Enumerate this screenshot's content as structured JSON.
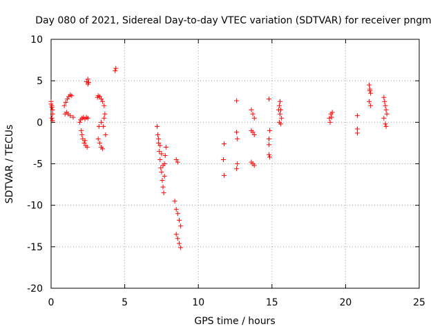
{
  "chart_data": {
    "type": "scatter",
    "title": "Day 080 of 2021, Sidereal Day-to-day VTEC variation (SDTVAR) for receiver pngm",
    "xlabel": "GPS time / hours",
    "ylabel": "SDTVAR / TECUs",
    "xlim": [
      0,
      25
    ],
    "ylim": [
      -20,
      10
    ],
    "x_ticks": [
      0,
      5,
      10,
      15,
      20,
      25
    ],
    "x_tick_labels": [
      "0",
      "5",
      "10",
      "15",
      "20",
      "25"
    ],
    "y_ticks": [
      10,
      5,
      0,
      -5,
      -10,
      -15,
      -20
    ],
    "y_tick_labels": [
      "10",
      "5",
      "0",
      "-5",
      "-10",
      "-15",
      "-20"
    ],
    "grid": true,
    "marker": "+",
    "color": "#ff0000",
    "series": [
      {
        "name": "SDTVAR",
        "x": [
          0.0,
          0.05,
          0.1,
          0.1,
          0.05,
          0.1,
          0.0,
          0.05,
          0.9,
          1.0,
          1.1,
          1.2,
          1.3,
          1.4,
          0.95,
          1.05,
          1.15,
          1.3,
          1.5,
          1.95,
          2.0,
          2.1,
          2.2,
          2.3,
          2.4,
          2.5,
          2.05,
          2.15,
          2.25,
          2.35,
          2.45,
          2.1,
          2.3,
          2.5,
          2.4,
          2.5,
          2.55,
          3.15,
          3.2,
          3.3,
          3.4,
          3.5,
          3.6,
          3.7,
          3.2,
          3.3,
          3.4,
          3.5,
          3.6,
          3.65,
          3.25,
          3.4,
          3.55,
          4.35,
          4.4,
          7.2,
          7.25,
          7.3,
          7.35,
          7.4,
          7.45,
          7.5,
          7.55,
          7.6,
          7.65,
          7.7,
          7.75,
          7.8,
          7.3,
          7.4,
          7.5,
          7.6,
          7.7,
          8.4,
          8.5,
          8.6,
          8.7,
          8.8,
          8.5,
          8.6,
          8.7,
          8.8,
          8.5,
          8.6,
          11.75,
          11.7,
          11.75,
          12.6,
          12.6,
          12.65,
          12.65,
          12.6,
          13.6,
          13.7,
          13.8,
          13.6,
          13.7,
          13.8,
          13.6,
          13.7,
          13.8,
          14.8,
          14.85,
          14.8,
          14.8,
          14.8,
          14.85,
          15.45,
          15.5,
          15.55,
          15.6,
          15.65,
          15.5,
          15.6,
          15.55,
          18.9,
          19.0,
          19.1,
          18.95,
          19.05,
          20.8,
          20.8,
          20.8,
          21.6,
          21.65,
          21.7,
          21.6,
          21.7,
          21.65,
          22.6,
          22.65,
          22.7,
          22.75,
          22.8,
          22.6,
          22.7,
          22.75
        ],
        "y": [
          2.5,
          2.0,
          1.5,
          1.0,
          0.5,
          0.2,
          2.2,
          1.8,
          2.0,
          2.4,
          2.8,
          3.1,
          3.3,
          3.2,
          1.0,
          1.2,
          1.0,
          0.8,
          0.6,
          0.0,
          0.3,
          0.5,
          0.6,
          0.4,
          0.6,
          0.5,
          -1.0,
          -2.0,
          -2.5,
          -2.8,
          -3.0,
          -1.5,
          -2.2,
          4.6,
          4.9,
          5.2,
          4.8,
          3.0,
          3.2,
          3.1,
          2.8,
          2.5,
          2.0,
          -1.5,
          -2.0,
          -2.5,
          -3.0,
          -3.2,
          0.5,
          1.0,
          -0.5,
          0.0,
          -0.5,
          6.2,
          6.5,
          -0.5,
          -1.5,
          -2.5,
          -3.5,
          -4.5,
          -5.5,
          -6.0,
          -7.0,
          -7.8,
          -8.5,
          -5.0,
          -4.0,
          -3.0,
          -2.0,
          -2.8,
          -3.8,
          -5.2,
          -6.5,
          -9.5,
          -10.5,
          -11.0,
          -11.8,
          -12.5,
          -13.5,
          -14.0,
          -14.6,
          -15.1,
          -4.5,
          -4.8,
          -2.6,
          -4.5,
          -6.4,
          2.6,
          -1.2,
          -2.0,
          -5.0,
          -5.6,
          1.5,
          1.0,
          0.5,
          -1.0,
          -1.2,
          -1.5,
          -4.8,
          -5.0,
          -5.2,
          2.8,
          -1.0,
          -2.0,
          -2.7,
          -3.9,
          -4.2,
          1.5,
          2.0,
          2.5,
          1.5,
          0.5,
          0.0,
          -0.2,
          1.0,
          0.5,
          1.0,
          1.2,
          0.0,
          0.6,
          0.8,
          -0.8,
          -1.3,
          4.5,
          4.0,
          3.5,
          2.5,
          2.0,
          3.8,
          3.0,
          2.5,
          2.0,
          1.5,
          1.0,
          0.5,
          -0.2,
          -0.5
        ]
      }
    ]
  }
}
